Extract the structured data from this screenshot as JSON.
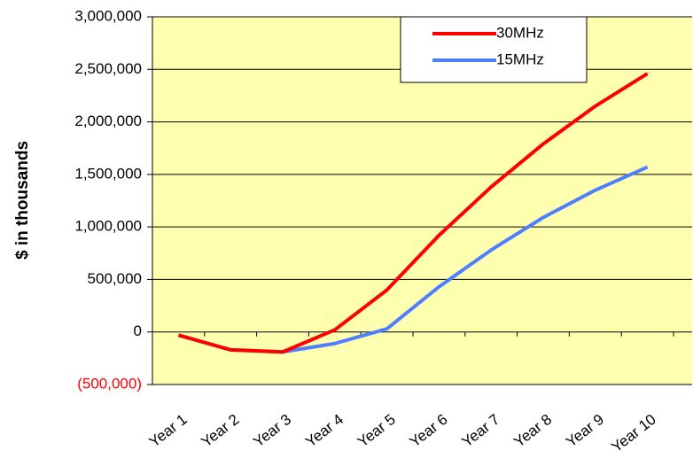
{
  "chart_data": {
    "type": "line",
    "y_label": "$ in thousands",
    "categories": [
      "Year 1",
      "Year 2",
      "Year 3",
      "Year 4",
      "Year 5",
      "Year 6",
      "Year 7",
      "Year 8",
      "Year 9",
      "Year 10"
    ],
    "series": [
      {
        "name": "30MHz",
        "color": "#ff0000",
        "values": [
          -30000,
          -170000,
          -190000,
          20000,
          400000,
          920000,
          1380000,
          1790000,
          2150000,
          2460000
        ]
      },
      {
        "name": "15MHz",
        "color": "#4f7fff",
        "values": [
          -30000,
          -170000,
          -190000,
          -110000,
          30000,
          430000,
          780000,
          1090000,
          1350000,
          1570000
        ]
      }
    ],
    "ylim": [
      -500000,
      3000000
    ],
    "yticks": [
      {
        "value": -500000,
        "label": "(500,000)"
      },
      {
        "value": 0,
        "label": "0"
      },
      {
        "value": 500000,
        "label": "500,000"
      },
      {
        "value": 1000000,
        "label": "1,000,000"
      },
      {
        "value": 1500000,
        "label": "1,500,000"
      },
      {
        "value": 2000000,
        "label": "2,000,000"
      },
      {
        "value": 2500000,
        "label": "2,500,000"
      },
      {
        "value": 3000000,
        "label": "3,000,000"
      }
    ],
    "negative_tick_color": "#ff0000",
    "plot_background": "#ffffb0",
    "grid": true,
    "legend": "top-right"
  }
}
